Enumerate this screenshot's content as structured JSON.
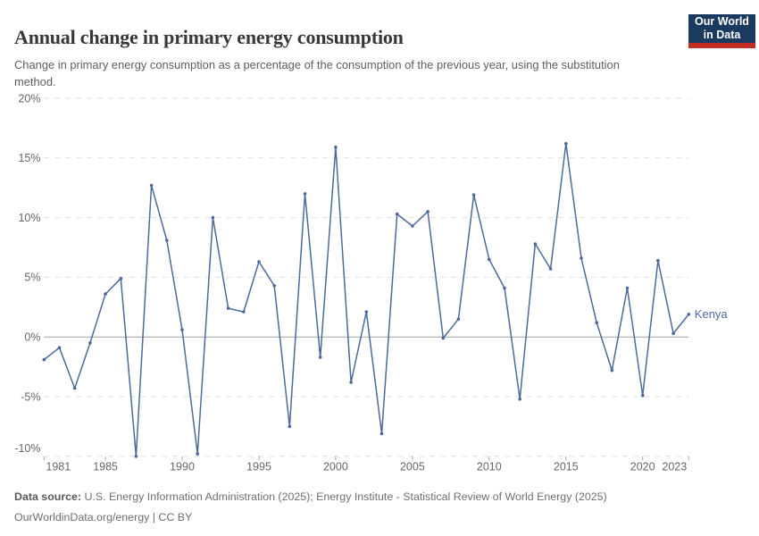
{
  "header": {
    "title": "Annual change in primary energy consumption",
    "subtitle": "Change in primary energy consumption as a percentage of the consumption of the previous year, using the substitution method.",
    "logo": {
      "line1": "Our World",
      "line2": "in Data"
    }
  },
  "chart_data": {
    "type": "line",
    "title": "Annual change in primary energy consumption",
    "xlabel": "",
    "ylabel": "",
    "unit": "%",
    "grid": true,
    "legend_position": "end-of-line-label",
    "ylim": [
      -10,
      20
    ],
    "yticks": [
      -10,
      -5,
      0,
      5,
      10,
      15,
      20
    ],
    "xticks": [
      1981,
      1985,
      1990,
      1995,
      2000,
      2005,
      2010,
      2015,
      2020,
      2023
    ],
    "x": [
      1981,
      1982,
      1983,
      1984,
      1985,
      1986,
      1987,
      1988,
      1989,
      1990,
      1991,
      1992,
      1993,
      1994,
      1995,
      1996,
      1997,
      1998,
      1999,
      2000,
      2001,
      2002,
      2003,
      2004,
      2005,
      2006,
      2007,
      2008,
      2009,
      2010,
      2011,
      2012,
      2013,
      2014,
      2015,
      2016,
      2017,
      2018,
      2019,
      2020,
      2021,
      2022,
      2023
    ],
    "series": [
      {
        "name": "Kenya",
        "color": "#4c6a9c",
        "values": [
          -1.9,
          -0.9,
          -4.3,
          -0.5,
          3.6,
          4.9,
          -10.0,
          12.7,
          8.1,
          0.6,
          -9.8,
          10.0,
          2.4,
          2.1,
          6.3,
          4.3,
          -7.5,
          12.0,
          -1.7,
          15.9,
          -3.8,
          2.1,
          -8.1,
          10.3,
          9.3,
          10.5,
          -0.1,
          1.5,
          11.9,
          6.5,
          4.1,
          -5.2,
          7.8,
          5.7,
          16.2,
          6.6,
          1.2,
          -2.8,
          4.1,
          -4.9,
          6.4,
          0.3,
          1.9
        ]
      }
    ]
  },
  "footer": {
    "source_label": "Data source:",
    "source_text": " U.S. Energy Information Administration (2025); Energy Institute - Statistical Review of World Energy (2025)",
    "license_line": "OurWorldinData.org/energy | CC BY"
  },
  "colors": {
    "line": "#4c6a9c",
    "grid": "#dedede",
    "zero_line": "#a0a0a0",
    "axis_tick": "#a8a8a8",
    "axis_text": "#666666",
    "logo_bg": "#1a3a5f",
    "logo_stripe": "#c22d23"
  }
}
